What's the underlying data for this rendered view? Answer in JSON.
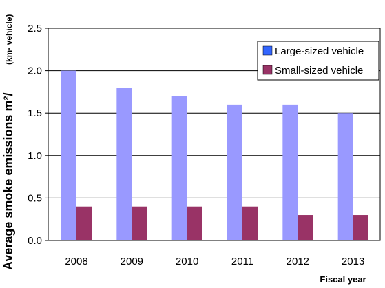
{
  "chart_data": {
    "type": "bar",
    "categories": [
      "2008",
      "2009",
      "2010",
      "2011",
      "2012",
      "2013"
    ],
    "series": [
      {
        "name": "Large-sized vehicle",
        "values": [
          2.0,
          1.8,
          1.7,
          1.6,
          1.6,
          1.5
        ],
        "color": "#9999ff",
        "legend_color": "#3366ff"
      },
      {
        "name": "Small-sized vehicle",
        "values": [
          0.4,
          0.4,
          0.4,
          0.4,
          0.3,
          0.3
        ],
        "color": "#993366",
        "legend_color": "#993366"
      }
    ],
    "xlabel": "Fiscal year",
    "ylabel": "Average smoke emissions m²/",
    "ylabel_unit": "(km· vehicle)",
    "ylim": [
      0,
      2.5
    ],
    "yticks": [
      "0.0",
      "0.5",
      "1.0",
      "1.5",
      "2.0",
      "2.5"
    ],
    "grid": true,
    "legend_position": "top-right"
  }
}
